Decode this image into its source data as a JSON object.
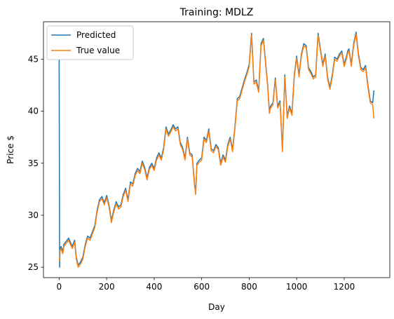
{
  "chart_data": {
    "type": "line",
    "title": "Training: MDLZ",
    "xlabel": "Day",
    "ylabel": "Price $",
    "xlim": [
      -66,
      1392
    ],
    "ylim": [
      24.0,
      48.6
    ],
    "xticks": [
      0,
      200,
      400,
      600,
      800,
      1000,
      1200
    ],
    "yticks": [
      25,
      30,
      35,
      40,
      45
    ],
    "grid": false,
    "legend_position": "top-left",
    "series": [
      {
        "name": "Predicted",
        "color": "#1f77b4",
        "x": [
          0,
          2,
          4,
          8,
          15,
          20,
          30,
          40,
          55,
          65,
          72,
          80,
          90,
          100,
          110,
          120,
          130,
          140,
          150,
          160,
          170,
          180,
          190,
          200,
          210,
          220,
          230,
          240,
          250,
          260,
          270,
          280,
          290,
          300,
          310,
          320,
          330,
          340,
          350,
          360,
          370,
          380,
          390,
          400,
          410,
          420,
          430,
          440,
          450,
          460,
          470,
          480,
          490,
          500,
          510,
          520,
          530,
          540,
          550,
          560,
          570,
          575,
          580,
          590,
          600,
          610,
          620,
          630,
          640,
          650,
          660,
          670,
          680,
          690,
          700,
          710,
          720,
          730,
          740,
          750,
          760,
          770,
          780,
          790,
          800,
          810,
          820,
          830,
          840,
          850,
          860,
          870,
          878,
          885,
          890,
          900,
          910,
          920,
          930,
          940,
          950,
          960,
          970,
          980,
          990,
          1000,
          1010,
          1020,
          1030,
          1040,
          1050,
          1060,
          1070,
          1080,
          1090,
          1100,
          1110,
          1120,
          1130,
          1140,
          1150,
          1160,
          1170,
          1180,
          1190,
          1200,
          1210,
          1215,
          1220,
          1230,
          1240,
          1250,
          1260,
          1270,
          1280,
          1290,
          1300,
          1310,
          1320,
          1325
        ],
        "y": [
          45.0,
          25.0,
          26.8,
          27.0,
          26.5,
          27.2,
          27.5,
          27.8,
          27.0,
          27.6,
          26.0,
          25.2,
          25.5,
          26.0,
          27.2,
          28.0,
          27.8,
          28.4,
          29.0,
          30.5,
          31.5,
          31.8,
          31.2,
          31.9,
          31.0,
          29.5,
          30.5,
          31.3,
          30.8,
          31.0,
          32.0,
          32.6,
          31.5,
          33.2,
          33.0,
          34.0,
          34.5,
          34.2,
          35.2,
          34.6,
          33.6,
          34.6,
          35.0,
          34.5,
          35.5,
          36.0,
          35.5,
          36.5,
          38.5,
          37.8,
          38.2,
          38.7,
          38.3,
          38.5,
          37.0,
          36.5,
          35.5,
          37.5,
          36.0,
          35.8,
          33.0,
          32.2,
          35.0,
          35.3,
          35.5,
          37.5,
          37.2,
          38.3,
          36.4,
          36.2,
          36.8,
          36.5,
          35.0,
          35.8,
          35.3,
          36.8,
          37.5,
          36.3,
          38.5,
          41.2,
          41.4,
          42.2,
          43.0,
          43.7,
          44.5,
          47.5,
          42.8,
          43.0,
          42.0,
          46.5,
          47.0,
          44.5,
          42.5,
          40.0,
          40.5,
          40.8,
          43.2,
          40.5,
          41.0,
          36.3,
          43.5,
          39.5,
          40.5,
          39.8,
          43.5,
          45.3,
          43.5,
          45.5,
          46.5,
          46.3,
          44.2,
          43.8,
          43.3,
          43.5,
          47.5,
          46.0,
          44.5,
          45.5,
          43.3,
          42.3,
          43.5,
          45.2,
          45.0,
          45.5,
          45.8,
          44.5,
          45.3,
          45.8,
          46.0,
          44.5,
          46.5,
          47.6,
          45.5,
          44.2,
          44.0,
          44.4,
          42.5,
          41.0,
          40.8,
          42.0
        ]
      },
      {
        "name": "True value",
        "color": "#ff7f0e",
        "x": [
          0,
          2,
          4,
          8,
          15,
          20,
          30,
          40,
          55,
          65,
          72,
          80,
          90,
          100,
          110,
          120,
          130,
          140,
          150,
          160,
          170,
          180,
          190,
          200,
          210,
          220,
          230,
          240,
          250,
          260,
          270,
          280,
          290,
          300,
          310,
          320,
          330,
          340,
          350,
          360,
          370,
          380,
          390,
          400,
          410,
          420,
          430,
          440,
          450,
          460,
          470,
          480,
          490,
          500,
          510,
          520,
          530,
          540,
          550,
          560,
          570,
          575,
          580,
          590,
          600,
          610,
          620,
          630,
          640,
          650,
          660,
          670,
          680,
          690,
          700,
          710,
          720,
          730,
          740,
          750,
          760,
          770,
          780,
          790,
          800,
          810,
          820,
          830,
          840,
          850,
          860,
          870,
          878,
          885,
          890,
          900,
          910,
          920,
          930,
          940,
          950,
          960,
          970,
          980,
          990,
          1000,
          1010,
          1020,
          1030,
          1040,
          1050,
          1060,
          1070,
          1080,
          1090,
          1100,
          1110,
          1120,
          1130,
          1140,
          1150,
          1160,
          1170,
          1180,
          1190,
          1200,
          1210,
          1215,
          1220,
          1230,
          1240,
          1250,
          1260,
          1270,
          1280,
          1290,
          1300,
          1310,
          1320,
          1325
        ],
        "y": [
          25.8,
          25.6,
          26.6,
          26.8,
          26.3,
          27.0,
          27.3,
          27.6,
          26.8,
          27.4,
          25.8,
          25.0,
          25.3,
          25.8,
          27.0,
          27.8,
          27.6,
          28.2,
          28.8,
          30.3,
          31.3,
          31.6,
          31.0,
          31.7,
          30.8,
          29.3,
          30.3,
          31.1,
          30.6,
          30.8,
          31.8,
          32.4,
          31.3,
          33.0,
          32.8,
          33.8,
          34.3,
          34.0,
          35.0,
          34.4,
          33.4,
          34.4,
          34.8,
          34.3,
          35.3,
          35.8,
          35.3,
          36.3,
          38.3,
          37.6,
          38.0,
          38.5,
          38.1,
          38.3,
          36.8,
          36.3,
          35.3,
          37.3,
          35.8,
          35.6,
          32.8,
          32.0,
          34.8,
          35.1,
          35.3,
          37.3,
          37.0,
          38.1,
          36.2,
          36.0,
          36.6,
          36.3,
          34.8,
          35.6,
          35.1,
          36.6,
          37.3,
          36.1,
          38.3,
          41.0,
          41.2,
          42.0,
          42.8,
          43.5,
          44.3,
          47.3,
          42.6,
          42.8,
          41.8,
          46.3,
          46.8,
          44.3,
          42.3,
          39.8,
          40.3,
          40.6,
          43.0,
          40.3,
          40.8,
          36.1,
          43.3,
          39.3,
          40.3,
          39.6,
          43.3,
          45.1,
          43.3,
          45.3,
          46.3,
          46.1,
          44.0,
          43.6,
          43.1,
          43.3,
          47.3,
          45.8,
          44.3,
          45.3,
          43.1,
          42.1,
          43.3,
          45.0,
          44.8,
          45.3,
          45.6,
          44.3,
          45.1,
          45.6,
          45.8,
          44.3,
          46.3,
          47.4,
          45.3,
          44.0,
          43.8,
          44.2,
          42.3,
          40.8,
          40.6,
          39.3
        ]
      }
    ]
  }
}
